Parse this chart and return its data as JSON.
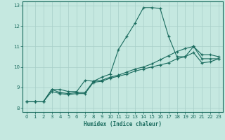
{
  "title": "",
  "xlabel": "Humidex (Indice chaleur)",
  "bg_color": "#c5e8e0",
  "grid_color": "#a8cfc8",
  "line_color": "#1a6b5e",
  "xlim": [
    -0.5,
    23.5
  ],
  "ylim": [
    7.8,
    13.2
  ],
  "xticks": [
    0,
    1,
    2,
    3,
    4,
    5,
    6,
    7,
    8,
    9,
    10,
    11,
    12,
    13,
    14,
    15,
    16,
    17,
    18,
    19,
    20,
    21,
    22,
    23
  ],
  "yticks": [
    8,
    9,
    10,
    11,
    12,
    13
  ],
  "line1_x": [
    0,
    1,
    2,
    3,
    4,
    5,
    6,
    7,
    8,
    9,
    10,
    11,
    12,
    13,
    14,
    15,
    16,
    17,
    18,
    19,
    20,
    21,
    22,
    23
  ],
  "line1_y": [
    8.3,
    8.3,
    8.3,
    8.9,
    8.9,
    8.8,
    8.8,
    9.35,
    9.3,
    9.5,
    9.65,
    10.85,
    11.5,
    12.15,
    12.9,
    12.9,
    12.85,
    11.5,
    10.5,
    10.5,
    11.0,
    10.6,
    10.6,
    10.5
  ],
  "line2_x": [
    0,
    1,
    2,
    3,
    4,
    5,
    6,
    7,
    8,
    9,
    10,
    11,
    12,
    13,
    14,
    15,
    16,
    17,
    18,
    19,
    20,
    21,
    22,
    23
  ],
  "line2_y": [
    8.3,
    8.3,
    8.3,
    8.9,
    8.75,
    8.7,
    8.75,
    8.75,
    9.3,
    9.35,
    9.5,
    9.6,
    9.75,
    9.9,
    10.0,
    10.15,
    10.35,
    10.55,
    10.75,
    10.9,
    11.0,
    10.4,
    10.4,
    10.4
  ],
  "line3_x": [
    0,
    1,
    2,
    3,
    4,
    5,
    6,
    7,
    8,
    9,
    10,
    11,
    12,
    13,
    14,
    15,
    16,
    17,
    18,
    19,
    20,
    21,
    22,
    23
  ],
  "line3_y": [
    8.3,
    8.3,
    8.3,
    8.8,
    8.7,
    8.65,
    8.7,
    8.7,
    9.25,
    9.3,
    9.45,
    9.55,
    9.65,
    9.8,
    9.9,
    10.0,
    10.1,
    10.2,
    10.4,
    10.5,
    10.7,
    10.2,
    10.25,
    10.4
  ]
}
